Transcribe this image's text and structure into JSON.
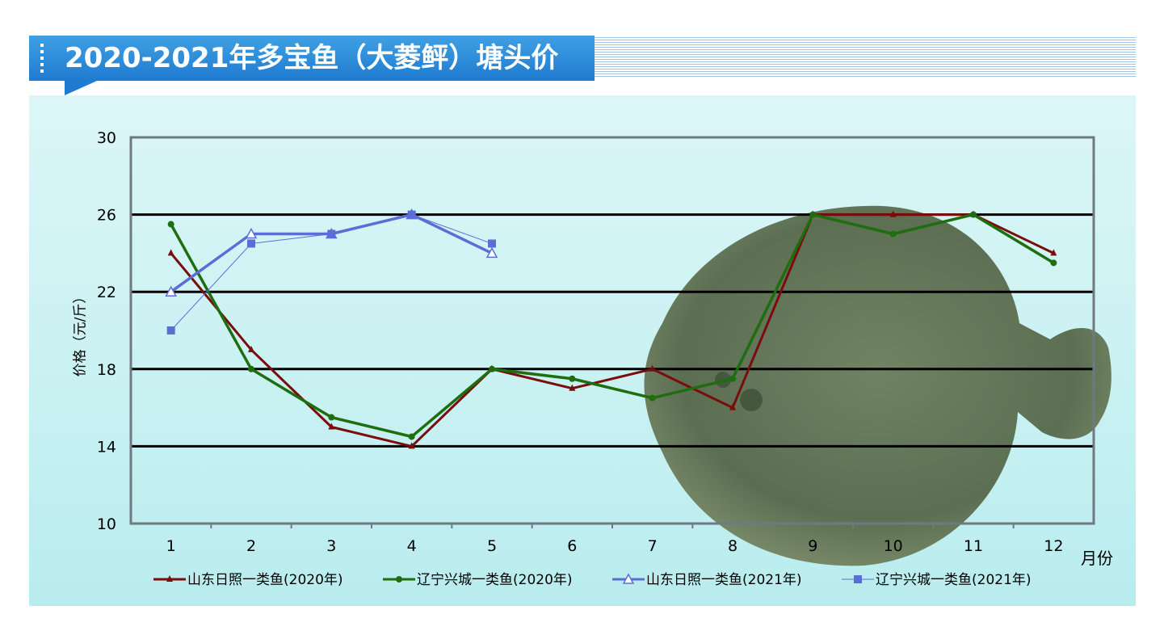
{
  "title": "2020-2021年多宝鱼（大菱鲆）塘头价",
  "colors": {
    "title_bg": "#2a8ad9",
    "panel_bg": "#c8f1f2",
    "shandong2020": "#7a0c0c",
    "liaoning2020": "#1e6e10",
    "shandong2021": "#5a6ed6",
    "liaoning2021": "#5a6ed6"
  },
  "chart_data": {
    "type": "line",
    "title": "2020-2021年多宝鱼（大菱鲆）塘头价",
    "xlabel": "月份",
    "ylabel": "价格（元/斤）",
    "ylim": [
      10,
      30
    ],
    "yticks": [
      "10",
      "14",
      "18",
      "22",
      "26",
      "30"
    ],
    "categories": [
      "1",
      "2",
      "3",
      "4",
      "5",
      "6",
      "7",
      "8",
      "9",
      "10",
      "11",
      "12"
    ],
    "grid": "horizontal",
    "legend_position": "bottom",
    "series": [
      {
        "name": "山东日照一类鱼(2020年)",
        "color": "#7a0c0c",
        "marker": "triangle-small",
        "values": [
          24,
          19,
          15,
          14,
          18,
          17,
          18,
          16,
          26,
          26,
          26,
          24
        ]
      },
      {
        "name": "辽宁兴城一类鱼(2020年)",
        "color": "#1e6e10",
        "marker": "circle",
        "values": [
          25.5,
          18,
          15.5,
          14.5,
          18,
          17.5,
          16.5,
          17.5,
          26,
          25,
          26,
          23.5
        ]
      },
      {
        "name": "山东日照一类鱼(2021年)",
        "color": "#5a6ed6",
        "marker": "triangle-open",
        "values": [
          22,
          25,
          25,
          26,
          24,
          null,
          null,
          null,
          null,
          null,
          null,
          null
        ]
      },
      {
        "name": "辽宁兴城一类鱼(2021年)",
        "color": "#5a6ed6",
        "marker": "square",
        "values": [
          20,
          24.5,
          25,
          26,
          24.5,
          null,
          null,
          null,
          null,
          null,
          null,
          null
        ]
      }
    ]
  }
}
